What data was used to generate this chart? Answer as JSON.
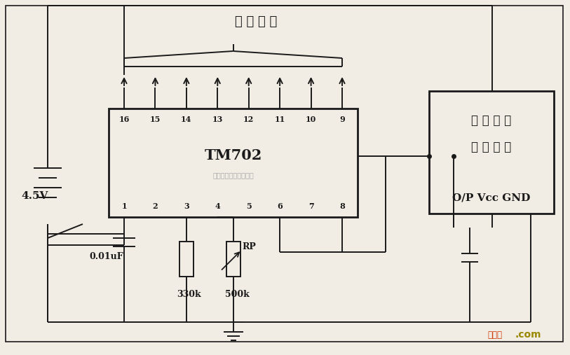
{
  "bg_color": "#f2ede4",
  "line_color": "#1a1a1a",
  "title": "控 制 输 出",
  "chip_label": "TM702",
  "watermark": "杭州谱睿科技有限公司",
  "voltage_label": "4.5V",
  "cap_label": "0.01uF",
  "r1_label": "330k",
  "r2_label": "500k",
  "rp_label": "RP",
  "amp_line1": "红 外 线 放",
  "amp_line2": "大 解 调 器",
  "amp_pins": "O/P Vcc GND",
  "top_pins": [
    "16",
    "15",
    "14",
    "13",
    "12",
    "11",
    "10",
    "9"
  ],
  "bottom_pins": [
    "1",
    "2",
    "3",
    "4",
    "5",
    "6",
    "7",
    "8"
  ],
  "website1": "接线图",
  "website2": ".com"
}
